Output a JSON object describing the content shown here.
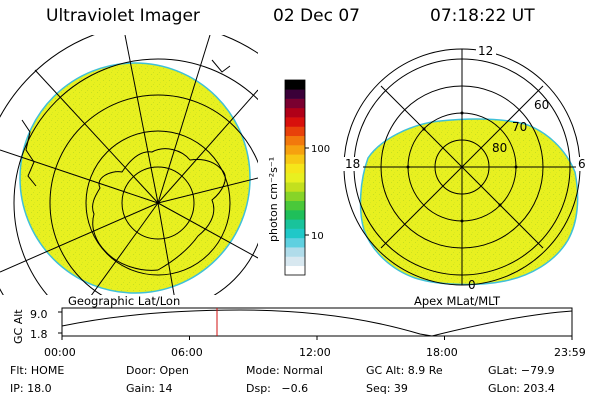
{
  "header": {
    "title": "Ultraviolet Imager",
    "date": "02 Dec 07",
    "time": "07:18:22 UT"
  },
  "left_panel": {
    "caption": "Geographic Lat/Lon"
  },
  "right_panel": {
    "caption": "Apex MLat/MLT",
    "mlt_labels": {
      "top": "12",
      "left": "18",
      "right": "6",
      "bottom": "0"
    },
    "lat_labels": [
      "60",
      "70",
      "80"
    ]
  },
  "colorbar": {
    "unit": "photon cm⁻²s⁻¹",
    "tick_labels": [
      "100",
      "10"
    ],
    "colors": [
      "#ffffff",
      "#d8e8f0",
      "#b0dcea",
      "#5fd0e0",
      "#20c8c8",
      "#19c39b",
      "#1fbf5a",
      "#4ac83a",
      "#87d428",
      "#c3e01e",
      "#e8f020",
      "#f5e61a",
      "#f7c814",
      "#f6a10f",
      "#f2780c",
      "#e8410a",
      "#d8100c",
      "#b00018",
      "#7a0030",
      "#3a0038",
      "#000000"
    ]
  },
  "timeline": {
    "ylabel": "GC Alt",
    "y_ticks": [
      "9.0",
      "1.8"
    ],
    "x_ticks": [
      "00:00",
      "06:00",
      "12:00",
      "18:00",
      "23:59"
    ],
    "current_time": "07:18"
  },
  "status": {
    "row1": {
      "flt": "Flt: HOME",
      "door": "Door: Open",
      "mode": "Mode: Normal",
      "gc_alt": "GC Alt: 8.9 Re",
      "glat": "GLat: −79.9"
    },
    "row2": {
      "ip": "IP: 18.0",
      "gain": "Gain: 14",
      "dsp": "Dsp:   −0.6",
      "seq": "Seq: 39",
      "glon": "GLon: 203.4"
    }
  }
}
